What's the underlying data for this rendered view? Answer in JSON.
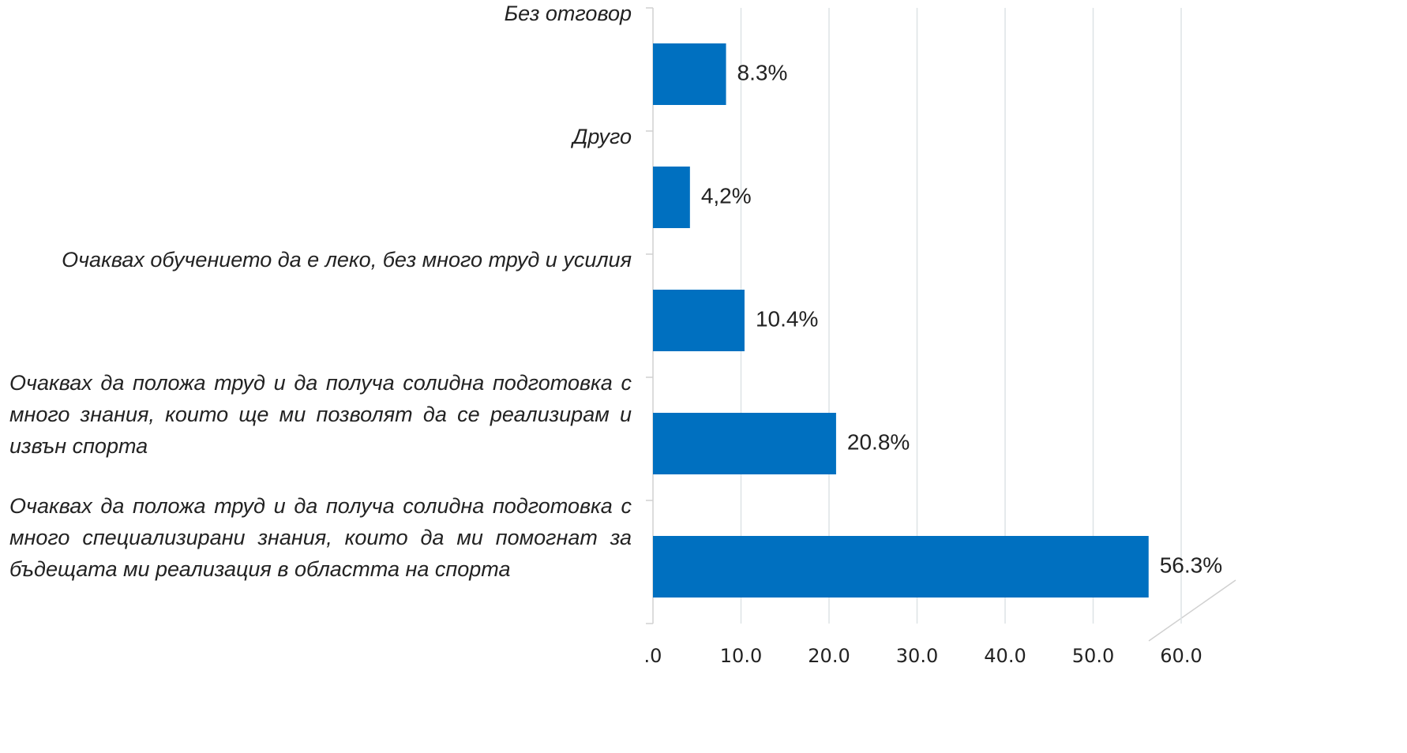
{
  "chart_data": {
    "type": "bar",
    "orientation": "horizontal",
    "categories": [
      "Без отговор",
      "Друго",
      "Очаквах обучението да е леко, без много труд и усилия",
      "Очаквах да положа труд и да получа солидна подготовка с много знания, които ще ми позволят да се реализирам и извън спорта",
      "Очаквах да положа труд и да получа солидна подготовка с много специализирани знания, които да ми помогнат за бъдещата ми реализация в областта на спорта"
    ],
    "values": [
      8.3,
      4.2,
      10.4,
      20.8,
      56.3
    ],
    "value_labels": [
      "8.3%",
      "4,2%",
      "10.4%",
      "20.8%",
      "56.3%"
    ],
    "color": "#0070c0",
    "xlim": [
      0,
      60
    ],
    "xticks": [
      {
        "value": 0,
        "label": ".0"
      },
      {
        "value": 10,
        "label": "10.0"
      },
      {
        "value": 20,
        "label": "20.0"
      },
      {
        "value": 30,
        "label": "30.0"
      },
      {
        "value": 40,
        "label": "40.0"
      },
      {
        "value": 50,
        "label": "50.0"
      },
      {
        "value": 60,
        "label": "60.0"
      }
    ],
    "grid": true
  }
}
